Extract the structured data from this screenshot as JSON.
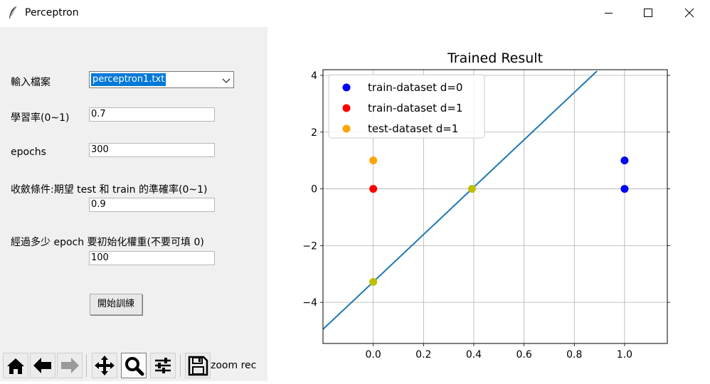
{
  "window": {
    "title": "Perceptron",
    "controls": {
      "minimize": "minimize",
      "maximize": "maximize",
      "close": "close"
    }
  },
  "form": {
    "file_label": "輸入檔案",
    "file_value": "perceptron1.txt",
    "lr_label": "學習率(0~1)",
    "lr_value": "0.7",
    "epochs_label": "epochs",
    "epochs_value": "300",
    "conv_label": "收斂條件:期望 test 和 train 的準確率(0~1)",
    "conv_value": "0.9",
    "reinit_label": "經過多少 epoch 要初始化權重(不要可填 0)",
    "reinit_value": "100",
    "train_button": "開始訓練"
  },
  "toolbar": {
    "buttons": [
      "home-icon",
      "back-arrow-icon",
      "forward-arrow-icon",
      "pan-icon",
      "zoom-icon",
      "subplots-icon",
      "save-icon"
    ],
    "active": "zoom-icon",
    "message": "zoom rec"
  },
  "chart_data": {
    "type": "scatter",
    "title": "Trained Result",
    "xlabel": "",
    "ylabel": "",
    "xlim": [
      -0.2,
      1.17
    ],
    "ylim": [
      -5.45,
      4.2
    ],
    "xticks": [
      "0.0",
      "0.2",
      "0.4",
      "0.6",
      "0.8",
      "1.0"
    ],
    "xtick_values": [
      0.0,
      0.2,
      0.4,
      0.6,
      0.8,
      1.0
    ],
    "yticks": [
      "4",
      "2",
      "0",
      "−2",
      "−4"
    ],
    "ytick_values": [
      4,
      2,
      0,
      -2,
      -4
    ],
    "grid": true,
    "legend_position": "top-left",
    "series": [
      {
        "name": "train-dataset d=0",
        "color": "#0000ff",
        "points": [
          [
            1.0,
            1.0
          ],
          [
            1.0,
            0.0
          ]
        ]
      },
      {
        "name": "train-dataset d=1",
        "color": "#ff0000",
        "points": [
          [
            0.0,
            0.0
          ]
        ]
      },
      {
        "name": "test-dataset d=1",
        "color": "#ffa500",
        "points": [
          [
            0.0,
            1.0
          ]
        ]
      }
    ],
    "intercepts": {
      "color": "#bfbf00",
      "points": [
        [
          0.0,
          -3.28
        ],
        [
          0.393,
          0.0
        ]
      ]
    },
    "decision_line": {
      "color": "#1f77b4",
      "points": [
        [
          -0.2,
          -4.95
        ],
        [
          0.89,
          4.15
        ]
      ]
    }
  }
}
